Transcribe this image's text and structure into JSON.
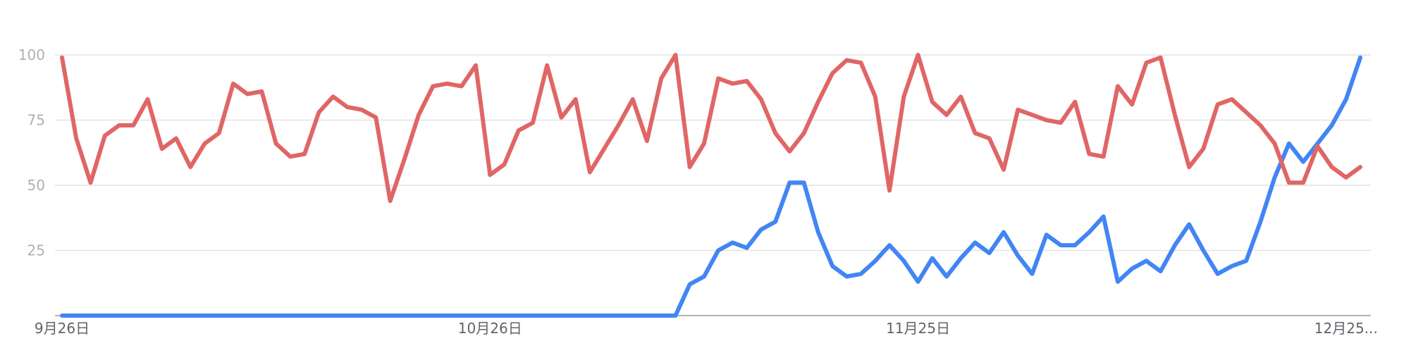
{
  "chart_data": {
    "type": "line",
    "ylim": [
      0,
      100
    ],
    "y_ticks": [
      "100",
      "75",
      "50",
      "25"
    ],
    "x_tick_labels": [
      {
        "index": 0,
        "label": "9月26日"
      },
      {
        "index": 30,
        "label": "10月26日"
      },
      {
        "index": 60,
        "label": "11月25日"
      },
      {
        "index": 90,
        "label": "12月25..."
      }
    ],
    "grid": true,
    "series": [
      {
        "color": "#4285f4",
        "values": [
          0,
          0,
          0,
          0,
          0,
          0,
          0,
          0,
          0,
          0,
          0,
          0,
          0,
          0,
          0,
          0,
          0,
          0,
          0,
          0,
          0,
          0,
          0,
          0,
          0,
          0,
          0,
          0,
          0,
          0,
          0,
          0,
          0,
          0,
          0,
          0,
          0,
          0,
          0,
          0,
          0,
          0,
          0,
          0,
          12,
          15,
          25,
          28,
          26,
          33,
          36,
          51,
          51,
          32,
          19,
          15,
          16,
          21,
          27,
          21,
          13,
          22,
          15,
          22,
          28,
          24,
          32,
          23,
          16,
          31,
          27,
          27,
          32,
          38,
          13,
          18,
          21,
          17,
          27,
          35,
          25,
          16,
          19,
          21,
          36,
          53,
          66,
          59,
          66,
          73,
          83,
          99
        ]
      },
      {
        "color": "#e06666",
        "values": [
          99,
          68,
          51,
          69,
          73,
          73,
          83,
          64,
          68,
          57,
          66,
          70,
          89,
          85,
          86,
          66,
          61,
          62,
          78,
          84,
          80,
          79,
          76,
          44,
          60,
          77,
          88,
          89,
          88,
          96,
          54,
          58,
          71,
          74,
          96,
          76,
          83,
          55,
          64,
          73,
          83,
          67,
          91,
          100,
          57,
          66,
          91,
          89,
          90,
          83,
          70,
          63,
          70,
          82,
          93,
          98,
          97,
          84,
          48,
          84,
          100,
          82,
          77,
          84,
          70,
          68,
          56,
          79,
          77,
          75,
          74,
          82,
          62,
          61,
          88,
          81,
          97,
          99,
          77,
          57,
          64,
          81,
          83,
          78,
          73,
          66,
          51,
          51,
          65,
          57,
          53,
          57
        ]
      }
    ]
  }
}
